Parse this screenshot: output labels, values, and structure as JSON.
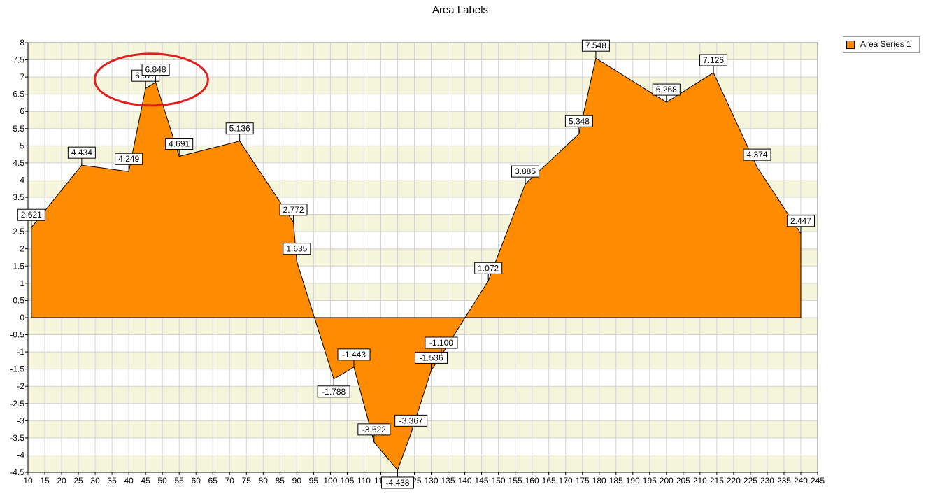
{
  "chart_data": {
    "type": "area",
    "title": "Area Labels",
    "xlabel": "",
    "ylabel": "",
    "xlim": [
      10,
      245
    ],
    "ylim": [
      -4.5,
      8
    ],
    "xticks": [
      10,
      15,
      20,
      25,
      30,
      35,
      40,
      45,
      50,
      55,
      60,
      65,
      70,
      75,
      80,
      85,
      90,
      95,
      100,
      105,
      110,
      115,
      120,
      125,
      130,
      135,
      140,
      145,
      150,
      155,
      160,
      165,
      170,
      175,
      180,
      185,
      190,
      195,
      200,
      205,
      210,
      215,
      220,
      225,
      230,
      235,
      240,
      245
    ],
    "yticks": [
      8,
      7.5,
      7,
      6.5,
      6,
      5.5,
      5,
      4.5,
      4,
      3.5,
      3,
      2.5,
      2,
      1.5,
      1,
      0.5,
      0,
      -0.5,
      -1,
      -1.5,
      -2,
      -2.5,
      -3,
      -3.5,
      -4,
      -4.5
    ],
    "grid": true,
    "legend_position": "top-right",
    "series": [
      {
        "name": "Area Series 1",
        "color": "#ff8c00",
        "points": [
          {
            "x": 11,
            "y": 2.621,
            "label": "2.621"
          },
          {
            "x": 26,
            "y": 4.434,
            "label": "4.434"
          },
          {
            "x": 40,
            "y": 4.249,
            "label": "4.249"
          },
          {
            "x": 45,
            "y": 6.673,
            "label": "6.673"
          },
          {
            "x": 48,
            "y": 6.848,
            "label": "6.848"
          },
          {
            "x": 55,
            "y": 4.691,
            "label": "4.691"
          },
          {
            "x": 73,
            "y": 5.136,
            "label": "5.136"
          },
          {
            "x": 89,
            "y": 2.772,
            "label": "2.772"
          },
          {
            "x": 90,
            "y": 1.635,
            "label": "1.635"
          },
          {
            "x": 101,
            "y": -1.788,
            "label": "-1.788"
          },
          {
            "x": 107,
            "y": -1.443,
            "label": "-1.443"
          },
          {
            "x": 113,
            "y": -3.622,
            "label": "-3.622"
          },
          {
            "x": 120,
            "y": -4.438,
            "label": "-4.438"
          },
          {
            "x": 124,
            "y": -3.367,
            "label": "-3.367"
          },
          {
            "x": 130,
            "y": -1.536,
            "label": "-1.536"
          },
          {
            "x": 133,
            "y": -1.1,
            "label": "-1.100"
          },
          {
            "x": 147,
            "y": 1.072,
            "label": "1.072"
          },
          {
            "x": 158,
            "y": 3.885,
            "label": "3.885"
          },
          {
            "x": 174,
            "y": 5.348,
            "label": "5.348"
          },
          {
            "x": 179,
            "y": 7.548,
            "label": "7.548"
          },
          {
            "x": 200,
            "y": 6.268,
            "label": "6.268"
          },
          {
            "x": 214,
            "y": 7.125,
            "label": "7.125"
          },
          {
            "x": 227,
            "y": 4.374,
            "label": "4.374"
          },
          {
            "x": 240,
            "y": 2.447,
            "label": "2.447"
          }
        ]
      }
    ],
    "highlight_color": "#e02020"
  }
}
